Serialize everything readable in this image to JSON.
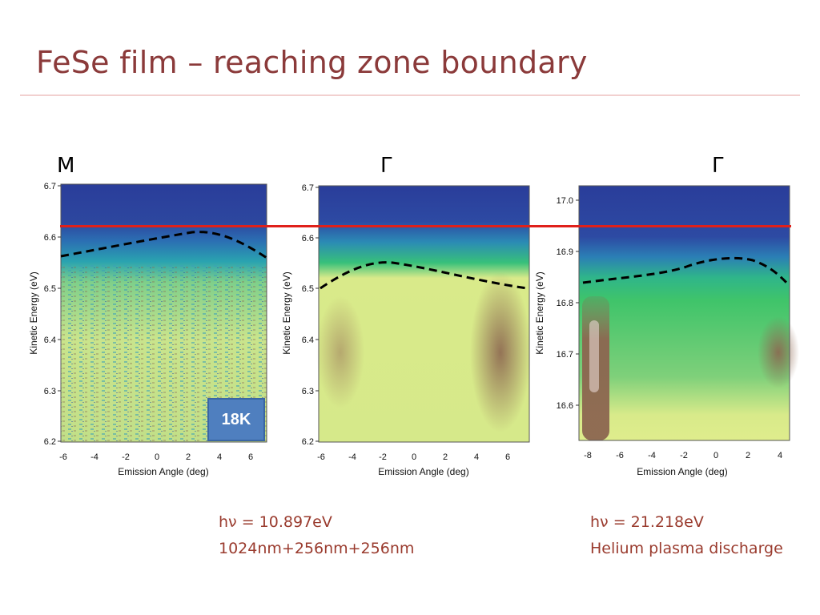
{
  "slide": {
    "title": "FeSe film – reaching zone boundary"
  },
  "panels": [
    {
      "symbol": "M",
      "y_label": "Kinetic Energy (eV)",
      "x_label": "Emission Angle (deg)",
      "y_ticks": [
        "6.7",
        "6.6",
        "6.5",
        "6.4",
        "6.3",
        "6.2"
      ],
      "x_ticks": [
        "-6",
        "-4",
        "-2",
        "0",
        "2",
        "4",
        "6"
      ],
      "badge": "18K"
    },
    {
      "symbol": "Γ",
      "y_label": "Kinetic Energy (eV)",
      "x_label": "Emission Angle (deg)",
      "y_ticks": [
        "6.7",
        "6.6",
        "6.5",
        "6.4",
        "6.3",
        "6.2"
      ],
      "x_ticks": [
        "-6",
        "-4",
        "-2",
        "0",
        "2",
        "4",
        "6"
      ]
    },
    {
      "symbol": "Γ",
      "y_label": "Kinetic Energy (eV)",
      "x_label": "Emission Angle (deg)",
      "y_ticks": [
        "17.0",
        "16.9",
        "16.8",
        "16.7",
        "16.6"
      ],
      "x_ticks": [
        "-8",
        "-6",
        "-4",
        "-2",
        "0",
        "2",
        "4"
      ]
    }
  ],
  "captions": {
    "left_line1": "hν = 10.897eV",
    "left_line2": "1024nm+256nm+256nm",
    "right_line1": "hν = 21.218eV",
    "right_line2": "Helium plasma discharge"
  },
  "colors": {
    "title": "#8b3a3a",
    "caption": "#9a3b2e",
    "fermi_line": "#e0201a",
    "badge": "#4f7fbf",
    "spectrum_dark_blue": "#2a3d9a",
    "spectrum_cyan": "#2ab8b0",
    "spectrum_green": "#3fc46a",
    "spectrum_yellow": "#e6ef8a",
    "spectrum_brown": "#8c6650"
  }
}
